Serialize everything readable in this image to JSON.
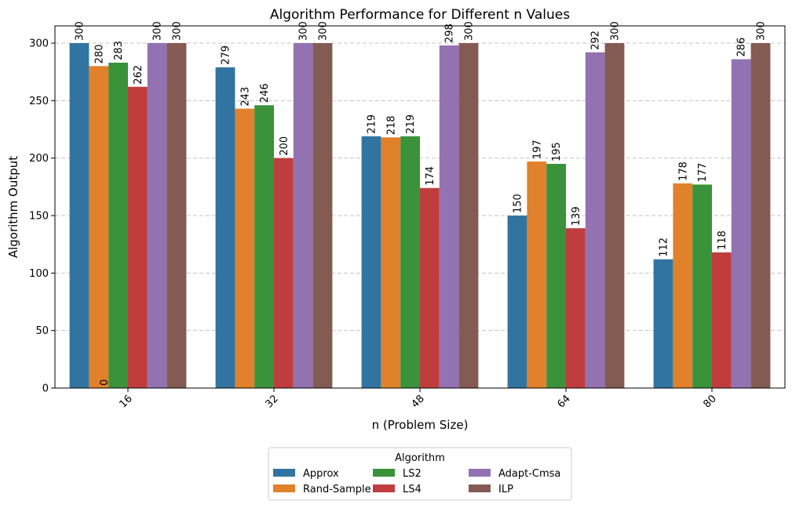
{
  "chart_data": {
    "type": "bar",
    "title": "Algorithm Performance for Different n Values",
    "xlabel": "n (Problem Size)",
    "ylabel": "Algorithm Output",
    "categories": [
      "16",
      "32",
      "48",
      "64",
      "80"
    ],
    "ylim": [
      0,
      315
    ],
    "yticks": [
      0,
      50,
      100,
      150,
      200,
      250,
      300
    ],
    "grid": "y-dashed",
    "legend_title": "Algorithm",
    "legend_placement": "bottom-center",
    "series": [
      {
        "name": "Approx",
        "color": "#3274a1",
        "values": [
          300,
          279,
          219,
          150,
          112
        ]
      },
      {
        "name": "Rand-Sample",
        "color": "#e1812c",
        "values": [
          280,
          243,
          218,
          197,
          178
        ]
      },
      {
        "name": "LS2",
        "color": "#3a923a",
        "values": [
          283,
          246,
          219,
          195,
          177
        ]
      },
      {
        "name": "LS4",
        "color": "#c03d3e",
        "values": [
          262,
          200,
          174,
          139,
          118
        ]
      },
      {
        "name": "Adapt-Cmsa",
        "color": "#9372b2",
        "values": [
          300,
          300,
          298,
          292,
          286
        ]
      },
      {
        "name": "ILP",
        "color": "#845b53",
        "values": [
          300,
          300,
          300,
          300,
          300
        ]
      }
    ],
    "annotations": [
      {
        "text": "0",
        "x": "16",
        "y": 0
      }
    ]
  }
}
